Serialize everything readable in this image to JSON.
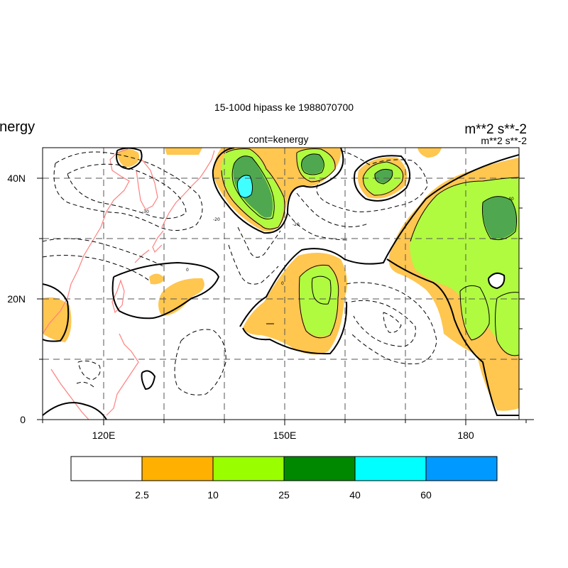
{
  "title": "15-100d hipass ke   1988070700",
  "left_label": "kenergy",
  "units": "m**2 s**-2",
  "units_sub": "m**2 s**-2",
  "contour_label": "cont=kenergy",
  "y_axis": {
    "ticks": [
      {
        "label": "0",
        "lat": 0
      },
      {
        "label": "20N",
        "lat": 20
      },
      {
        "label": "40N",
        "lat": 40
      }
    ],
    "range": [
      0,
      45
    ]
  },
  "x_axis": {
    "ticks": [
      {
        "label": "120E",
        "lon": 120
      },
      {
        "label": "150E",
        "lon": 150
      },
      {
        "label": "180",
        "lon": 180
      }
    ],
    "range": [
      110,
      190
    ]
  },
  "colorbar": {
    "levels": [
      "2.5",
      "10",
      "25",
      "40",
      "60"
    ],
    "colors": [
      "#ffffff",
      "#ffb000",
      "#99ff00",
      "#008800",
      "#00ffff",
      "#0099ff"
    ]
  },
  "fill_colors": {
    "low": "#ffc650",
    "mid": "#b0fa40",
    "high": "#4fa84f",
    "peak": "#40ffff"
  },
  "coast_color": "#ff8080"
}
